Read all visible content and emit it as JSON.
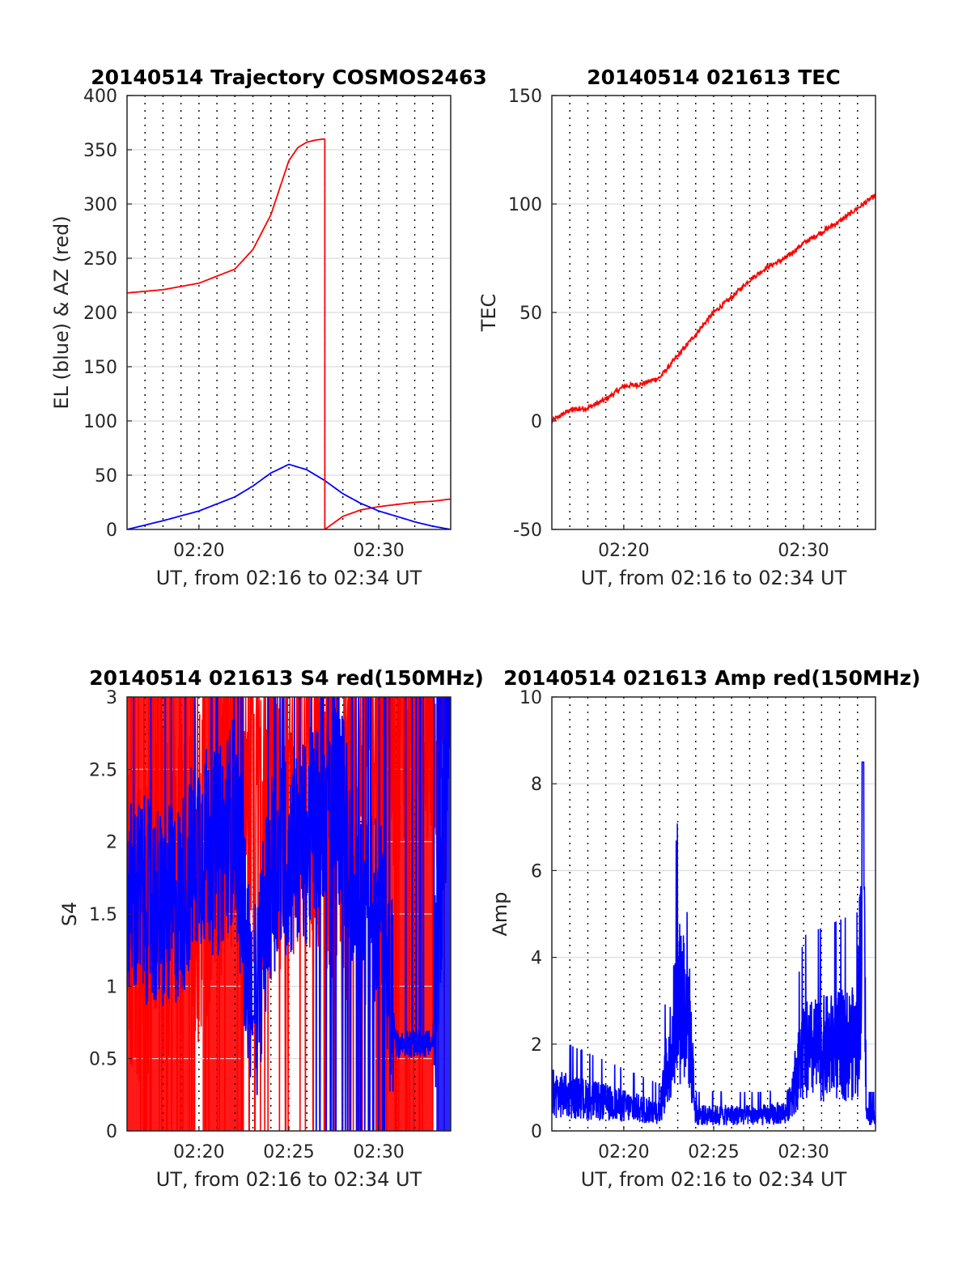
{
  "figure": {
    "background": "#ffffff"
  },
  "colors": {
    "red": "#ff0000",
    "blue": "#0000ff",
    "grid": "#dcdcdc",
    "vgrid": "#000000",
    "axis": "#262626"
  },
  "chart_data": [
    {
      "id": "trajectory",
      "type": "line",
      "title": "20140514 Trajectory COSMOS2463",
      "xlabel": "UT, from 02:16 to 02:34 UT",
      "ylabel": "EL (blue) & AZ (red)",
      "xlim": [
        "02:16",
        "02:34"
      ],
      "ylim": [
        0,
        400
      ],
      "yticks": [
        0,
        50,
        100,
        150,
        200,
        250,
        300,
        350,
        400
      ],
      "xticks": [
        "02:20",
        "02:30"
      ],
      "grid": true,
      "series": [
        {
          "color": "#ff0000",
          "x": [
            "02:16",
            "02:18",
            "02:20",
            "02:22",
            "02:23",
            "02:24",
            "02:24.5",
            "02:25",
            "02:25.5",
            "02:26",
            "02:26.5",
            "02:27"
          ],
          "y": [
            218,
            221,
            227,
            240,
            258,
            290,
            315,
            340,
            352,
            357,
            359,
            360
          ]
        },
        {
          "color": "#ff0000",
          "x": [
            "02:27",
            "02:28",
            "02:29",
            "02:30",
            "02:31",
            "02:32",
            "02:33",
            "02:34"
          ],
          "y": [
            0,
            12,
            18,
            21,
            23,
            25,
            26,
            28
          ]
        },
        {
          "color": "#0000ff",
          "x": [
            "02:16",
            "02:18",
            "02:20",
            "02:22",
            "02:23",
            "02:24",
            "02:25",
            "02:26",
            "02:27",
            "02:28",
            "02:29",
            "02:30",
            "02:31",
            "02:32",
            "02:33",
            "02:34"
          ],
          "y": [
            0,
            8,
            17,
            30,
            40,
            52,
            60,
            55,
            45,
            33,
            24,
            17,
            12,
            7,
            3,
            0
          ]
        }
      ]
    },
    {
      "id": "tec",
      "type": "line",
      "title": "20140514 021613 TEC",
      "xlabel": "UT, from 02:16 to 02:34 UT",
      "ylabel": "TEC",
      "xlim": [
        "02:16",
        "02:34"
      ],
      "ylim": [
        -50,
        150
      ],
      "yticks": [
        -50,
        0,
        50,
        100,
        150
      ],
      "xticks": [
        "02:20",
        "02:30"
      ],
      "grid": true,
      "series": [
        {
          "color": "#ff0000",
          "x": [
            "02:16",
            "02:17",
            "02:18",
            "02:19",
            "02:20",
            "02:21",
            "02:22",
            "02:23",
            "02:24",
            "02:25",
            "02:26",
            "02:27",
            "02:28",
            "02:29",
            "02:30",
            "02:31",
            "02:32",
            "02:33",
            "02:34"
          ],
          "y": [
            0,
            5,
            6,
            10,
            16,
            17,
            20,
            30,
            40,
            50,
            57,
            65,
            71,
            75,
            82,
            87,
            92,
            98,
            104
          ]
        }
      ]
    },
    {
      "id": "s4",
      "type": "line",
      "title": "20140514 021613 S4 red(150MHz)",
      "xlabel": "UT, from 02:16 to 02:34 UT",
      "ylabel": "S4",
      "xlim": [
        "02:16",
        "02:34"
      ],
      "ylim": [
        0,
        3
      ],
      "yticks": [
        0,
        0.5,
        1,
        1.5,
        2,
        2.5,
        3
      ],
      "xticks": [
        "02:20",
        "02:25",
        "02:30"
      ],
      "grid": true,
      "series": [
        {
          "color": "#ff0000",
          "x": [
            "02:16",
            "02:18",
            "02:20",
            "02:22",
            "02:24",
            "02:26",
            "02:28",
            "02:30",
            "02:32",
            "02:34"
          ],
          "y": [
            1.5,
            1.6,
            1.8,
            2.5,
            2.2,
            2.5,
            2.0,
            3,
            3,
            3
          ]
        },
        {
          "color": "#0000ff",
          "x": [
            "02:16",
            "02:17",
            "02:18",
            "02:19",
            "02:20",
            "02:21",
            "02:22",
            "02:23",
            "02:24",
            "02:25",
            "02:26",
            "02:27",
            "02:28",
            "02:29",
            "02:30",
            "02:31",
            "02:32",
            "02:33",
            "02:34"
          ],
          "y": [
            1.6,
            1.6,
            1.5,
            1.6,
            2.0,
            1.9,
            2.2,
            0.7,
            1.8,
            1.9,
            2.0,
            2.3,
            2.2,
            1.5,
            1.6,
            0.6,
            0.6,
            0.6,
            3
          ]
        }
      ]
    },
    {
      "id": "amp",
      "type": "line",
      "title": "20140514 021613 Amp red(150MHz)",
      "xlabel": "UT, from 02:16 to 02:34 UT",
      "ylabel": "Amp",
      "xlim": [
        "02:16",
        "02:34"
      ],
      "ylim": [
        0,
        10
      ],
      "yticks": [
        0,
        2,
        4,
        6,
        8,
        10
      ],
      "xticks": [
        "02:20",
        "02:25",
        "02:30"
      ],
      "grid": true,
      "series": [
        {
          "color": "#0000ff",
          "x": [
            "02:16",
            "02:18",
            "02:20",
            "02:22",
            "02:23",
            "02:23.5",
            "02:24",
            "02:26",
            "02:28",
            "02:29",
            "02:30",
            "02:31",
            "02:32",
            "02:33",
            "02:33.3",
            "02:33.5",
            "02:34"
          ],
          "y": [
            1.2,
            1.0,
            0.8,
            0.6,
            4.0,
            4.5,
            0.5,
            0.5,
            0.5,
            0.6,
            2.5,
            2.6,
            2.7,
            2.8,
            8.5,
            0.5,
            0.5
          ]
        }
      ]
    }
  ]
}
